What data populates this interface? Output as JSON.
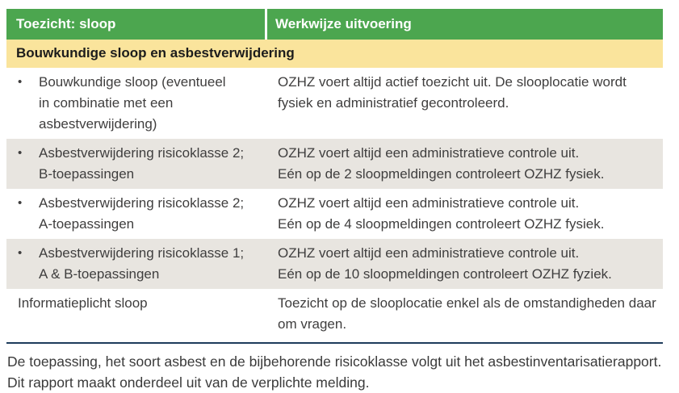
{
  "table": {
    "header": {
      "col1": "Toezicht: sloop",
      "col2": "Werkwijze uitvoering"
    },
    "section_title": "Bouwkundige sloop en asbestverwijdering",
    "rows": [
      {
        "bullet": true,
        "shaded": false,
        "left_lines": [
          "Bouwkundige sloop (eventueel",
          "in combinatie met een",
          "asbestverwijdering)"
        ],
        "right_lines": [
          "OZHZ voert altijd actief toezicht uit. De slooplocatie wordt",
          "fysiek en administratief gecontroleerd."
        ]
      },
      {
        "bullet": true,
        "shaded": true,
        "left_lines": [
          "Asbestverwijdering risicoklasse 2;",
          "B-toepassingen"
        ],
        "right_lines": [
          "OZHZ voert altijd een administratieve controle uit.",
          "Eén op de 2 sloopmeldingen controleert OZHZ fysiek."
        ]
      },
      {
        "bullet": true,
        "shaded": false,
        "left_lines": [
          "Asbestverwijdering risicoklasse 2;",
          "A-toepassingen"
        ],
        "right_lines": [
          "OZHZ voert altijd een administratieve controle uit.",
          "Eén op de 4 sloopmeldingen controleert OZHZ fysiek."
        ]
      },
      {
        "bullet": true,
        "shaded": true,
        "left_lines": [
          "Asbestverwijdering risicoklasse 1;",
          "A & B-toepassingen"
        ],
        "right_lines": [
          "OZHZ voert altijd een administratieve controle uit.",
          "Eén op de 10 sloopmeldingen controleert OZHZ fyziek."
        ]
      },
      {
        "bullet": false,
        "shaded": false,
        "left_lines": [
          "Informatieplicht sloop"
        ],
        "right_lines": [
          "Toezicht op de slooplocatie enkel als de omstandigheden daar",
          "om vragen."
        ]
      }
    ],
    "bullet_glyph": "•"
  },
  "footer": {
    "lines": [
      "De toepassing, het soort asbest en de bijbehorende risicoklasse volgt uit het asbestinventarisatierapport.",
      "Dit rapport maakt onderdeel uit van de verplichte melding."
    ]
  },
  "colors": {
    "header_green": "#4ca64f",
    "section_yellow": "#fae49c",
    "row_shaded_gray": "#e8e5e0",
    "bottom_rule_navy": "#1e3c5c",
    "body_text": "#3f3e3e"
  }
}
